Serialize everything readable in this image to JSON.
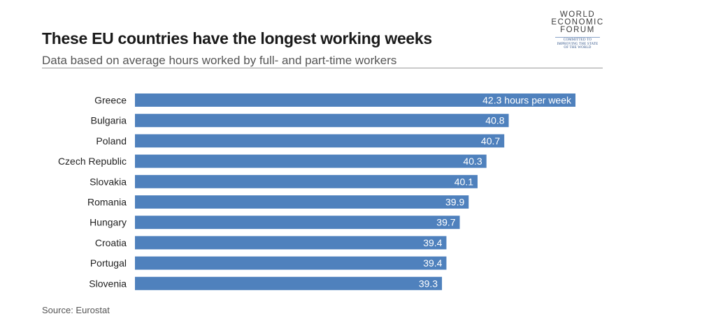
{
  "header": {
    "title": "These EU countries have the longest working weeks",
    "subtitle": "Data based on average hours worked by full- and part-time workers"
  },
  "logo": {
    "line1": "WORLD",
    "line2": "ECONOMIC",
    "line3": "FORUM",
    "tagline1": "COMMITTED TO",
    "tagline2": "IMPROVING THE STATE",
    "tagline3": "OF THE WORLD"
  },
  "footer": {
    "source": "Source: Eurostat"
  },
  "colors": {
    "bar": "#4f81bd",
    "value_text": "#ffffff"
  },
  "chart_data": {
    "type": "bar",
    "orientation": "horizontal",
    "title": "These EU countries have the longest working weeks",
    "subtitle": "Data based on average hours worked by full- and part-time workers",
    "xlabel": "",
    "ylabel": "",
    "grid": false,
    "categories": [
      "Greece",
      "Bulgaria",
      "Poland",
      "Czech Republic",
      "Slovakia",
      "Romania",
      "Hungary",
      "Croatia",
      "Portugal",
      "Slovenia"
    ],
    "values": [
      42.3,
      40.8,
      40.7,
      40.3,
      40.1,
      39.9,
      39.7,
      39.4,
      39.4,
      39.3
    ],
    "value_labels": [
      "42.3 hours per week",
      "40.8",
      "40.7",
      "40.3",
      "40.1",
      "39.9",
      "39.7",
      "39.4",
      "39.4",
      "39.3"
    ],
    "xlim": [
      32.4,
      42.3
    ]
  }
}
